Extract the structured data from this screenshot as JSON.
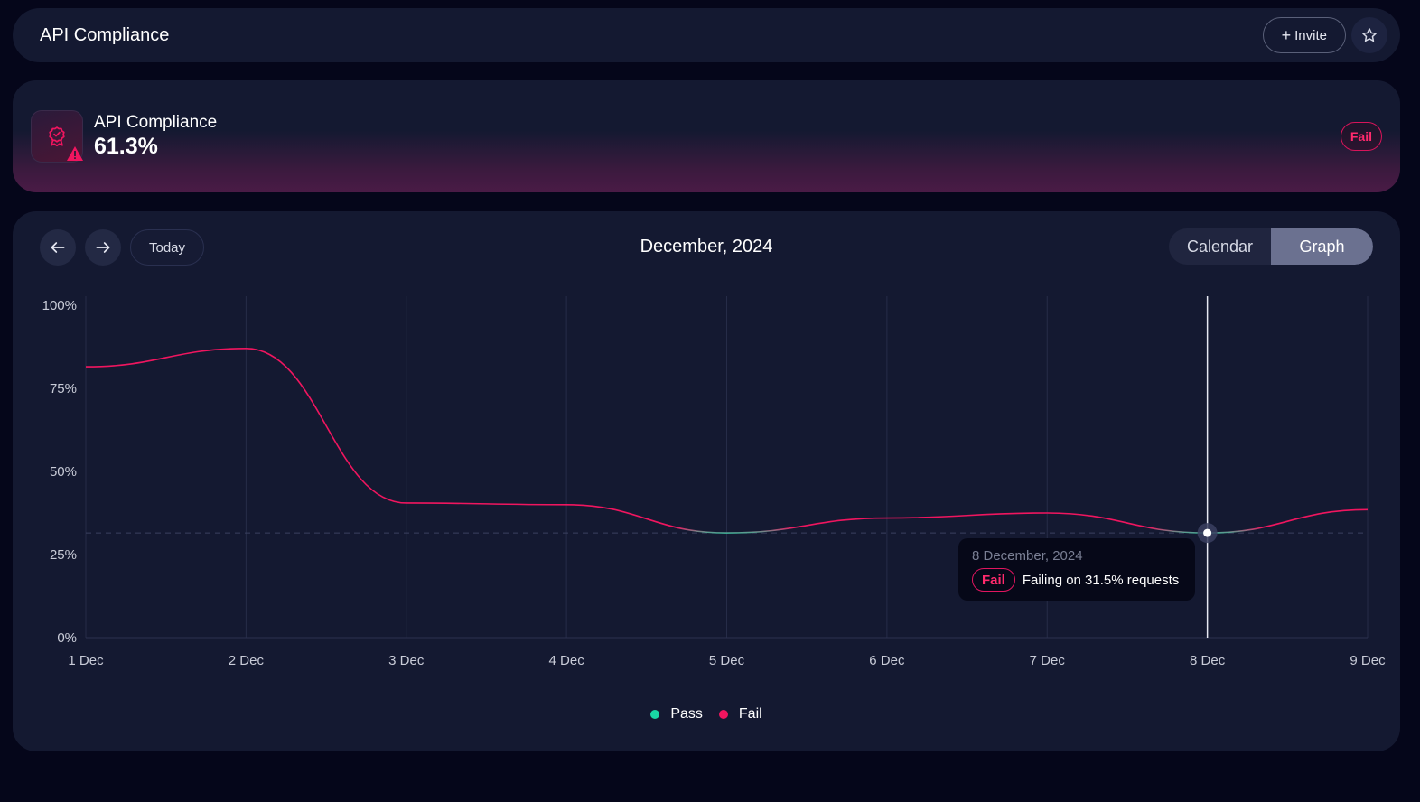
{
  "header": {
    "title": "API Compliance",
    "invite_label": "Invite"
  },
  "status": {
    "label": "API Compliance",
    "value": "61.3%",
    "badge": "Fail"
  },
  "calendar": {
    "today_label": "Today",
    "month_title": "December, 2024",
    "views": [
      "Calendar",
      "Graph"
    ],
    "active_view": "Graph"
  },
  "tooltip": {
    "date": "8 December, 2024",
    "status": "Fail",
    "message": "Failing on 31.5% requests"
  },
  "colors": {
    "pass": "#19d6a4",
    "fail": "#f0155f"
  },
  "chart_data": {
    "type": "line",
    "title": "",
    "xlabel": "",
    "ylabel": "",
    "categories": [
      "1 Dec",
      "2 Dec",
      "3 Dec",
      "4 Dec",
      "5 Dec",
      "6 Dec",
      "7 Dec",
      "8 Dec",
      "9 Dec"
    ],
    "values": [
      81.5,
      87,
      40.5,
      40,
      31.5,
      36,
      37.5,
      31.5,
      38.5
    ],
    "threshold": 31.5,
    "y_ticks": [
      "0%",
      "25%",
      "50%",
      "75%",
      "100%"
    ],
    "ylim": [
      0,
      100
    ],
    "legend": [
      {
        "name": "Pass",
        "color": "#19d6a4"
      },
      {
        "name": "Fail",
        "color": "#f0155f"
      }
    ],
    "legend_position": "bottom",
    "highlighted": "8 Dec"
  }
}
